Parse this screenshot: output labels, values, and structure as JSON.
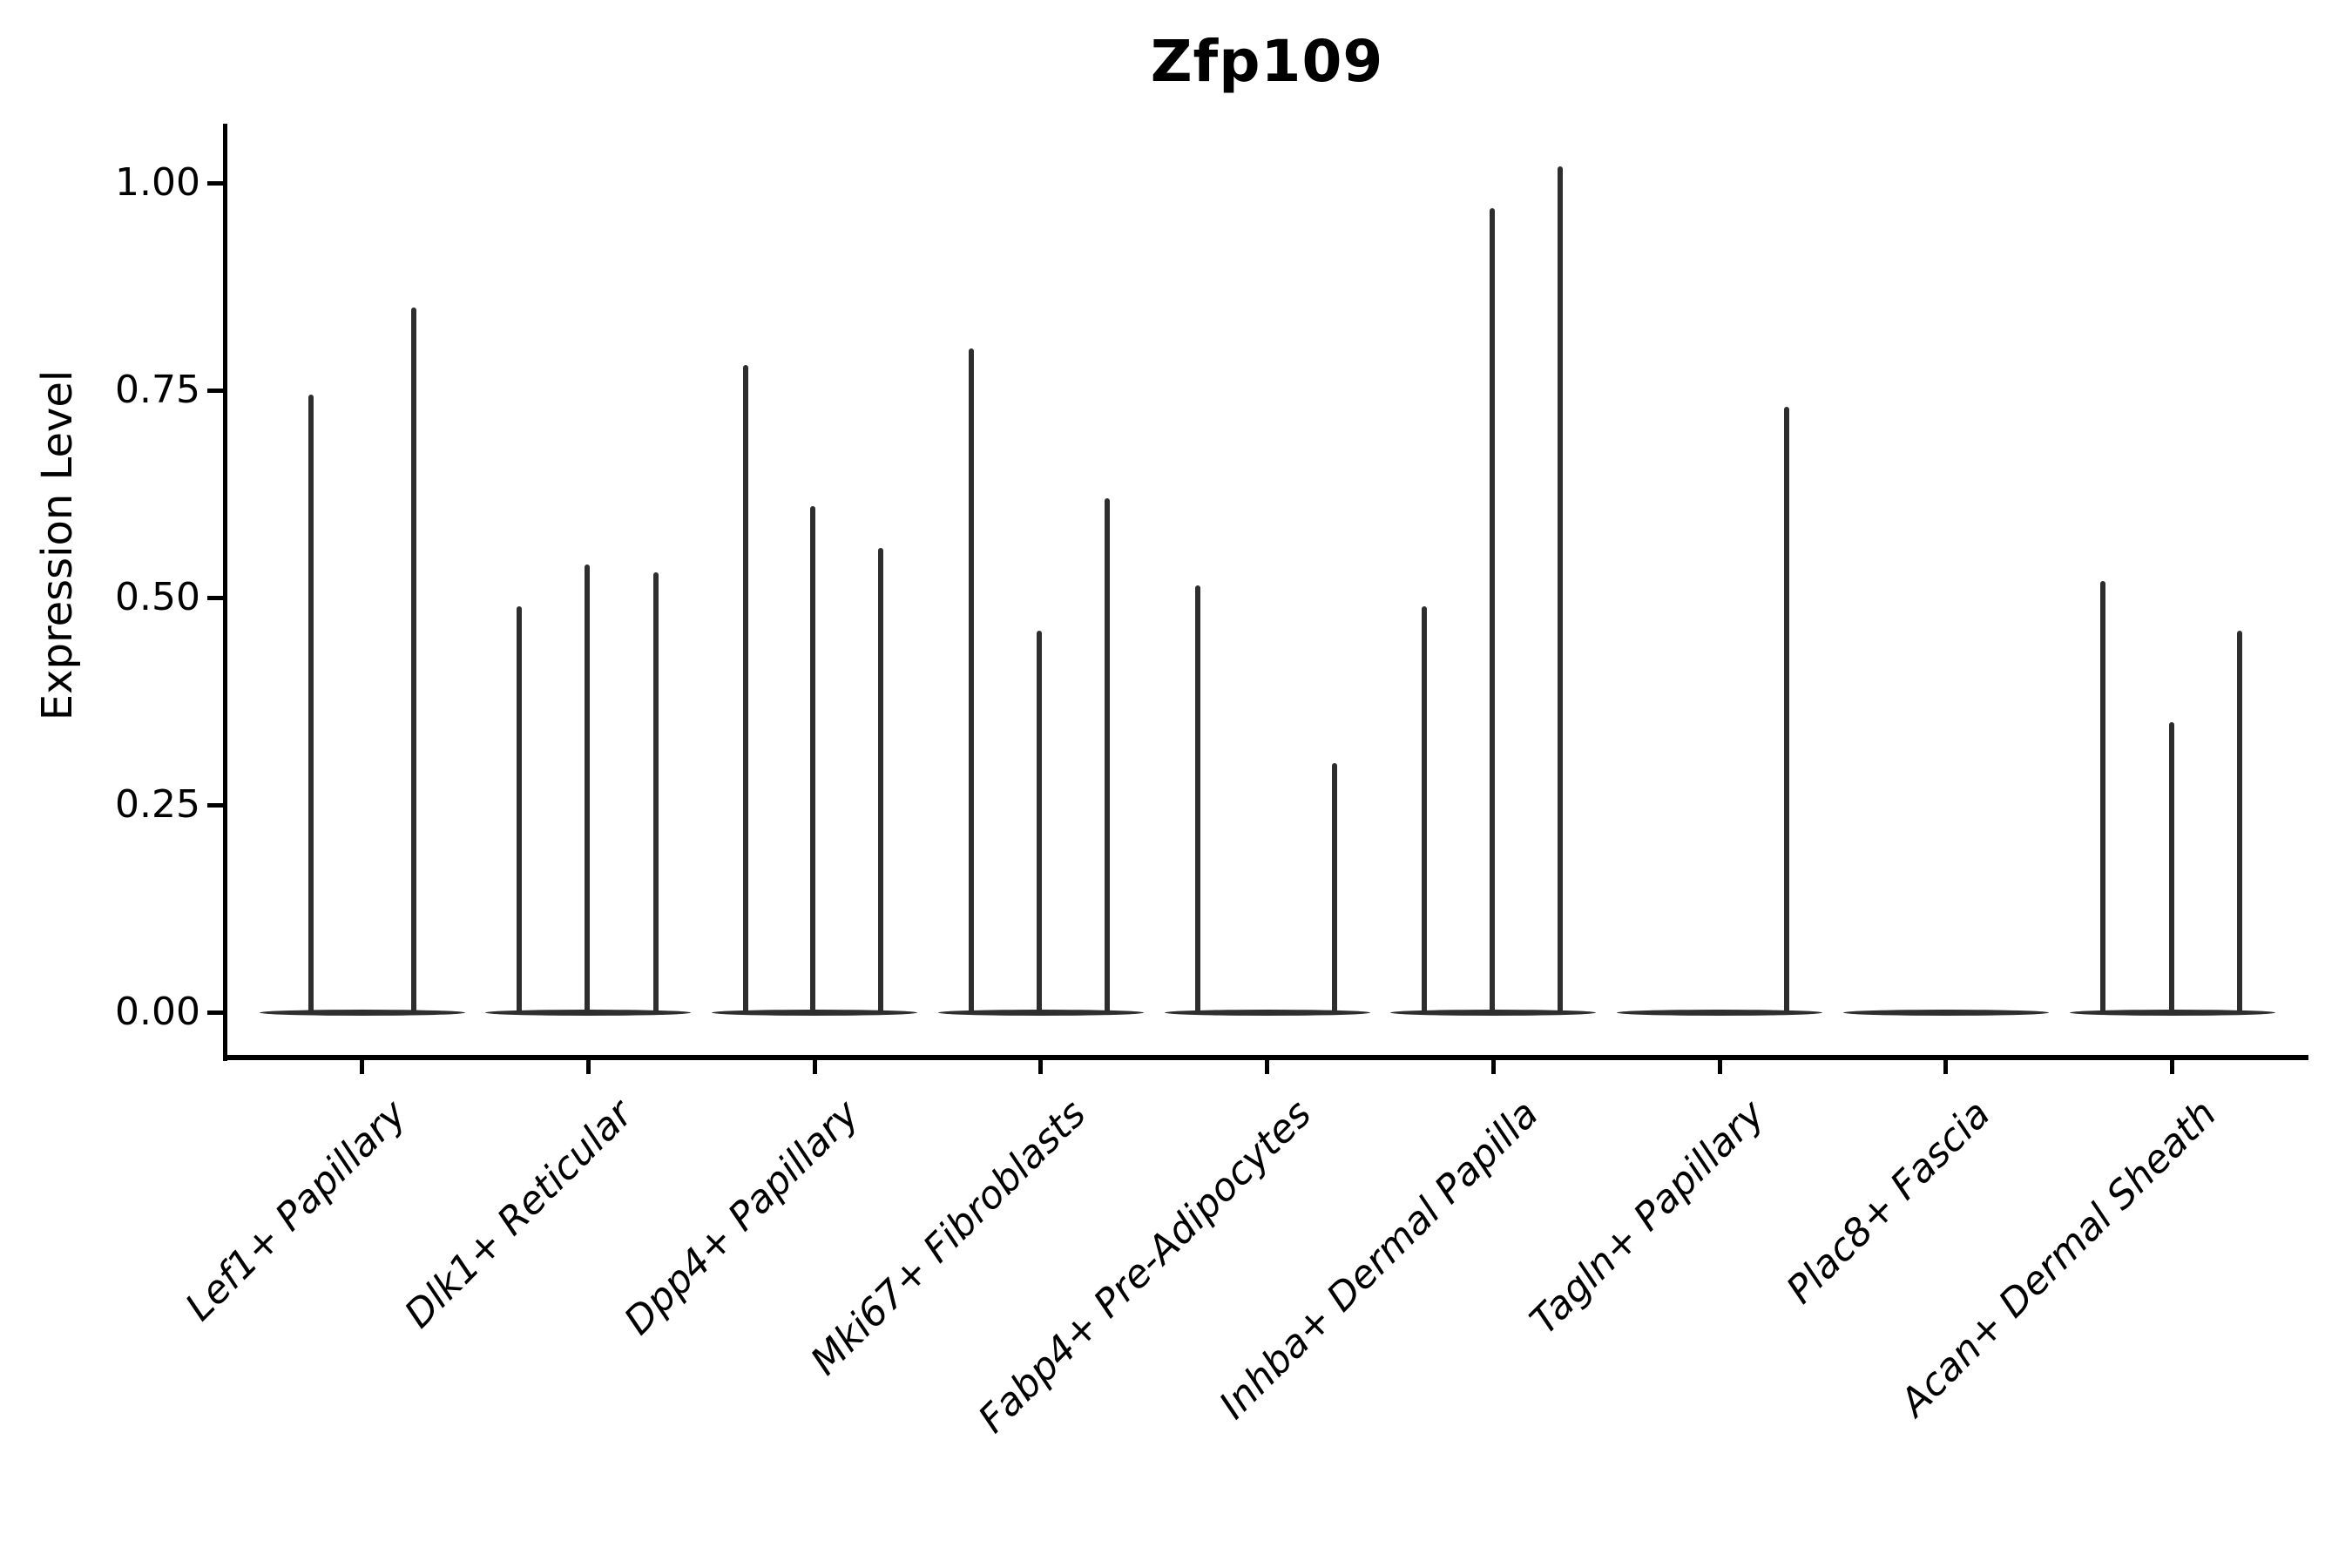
{
  "title": "Zfp109",
  "colors": {
    "background": "#ffffff",
    "ink": "#000000",
    "violin": "#2e2e2e"
  },
  "chart_data": {
    "type": "violin",
    "title": "Zfp109",
    "xlabel": "",
    "ylabel": "Expression Level",
    "ylim": [
      0,
      1.07
    ],
    "grid": false,
    "legend": "none",
    "x_tick_rotation": 45,
    "y_ticks": [
      {
        "value": 0.0,
        "label": "0.00"
      },
      {
        "value": 0.25,
        "label": "0.25"
      },
      {
        "value": 0.5,
        "label": "0.50"
      },
      {
        "value": 0.75,
        "label": "0.75"
      },
      {
        "value": 1.0,
        "label": "1.00"
      }
    ],
    "categories": [
      "Lef1+ Papillary",
      "Dlk1+ Reticular",
      "Dpp4+ Papillary",
      "Mki67+ Fibroblasts",
      "Fabp4+ Pre-Adipocytes",
      "Inhba+ Dermal Papilla",
      "Tagln+ Papillary",
      "Plac8+ Fascia",
      "Acan+ Dermal Sheath"
    ],
    "series": [
      {
        "name": "Lef1+ Papillary",
        "spikes": [
          {
            "offset": -59,
            "value": 0.745
          },
          {
            "offset": 59,
            "value": 0.85
          }
        ]
      },
      {
        "name": "Dlk1+ Reticular",
        "spikes": [
          {
            "offset": -79,
            "value": 0.49
          },
          {
            "offset": -1,
            "value": 0.54
          },
          {
            "offset": 78,
            "value": 0.53
          }
        ]
      },
      {
        "name": "Dpp4+ Papillary",
        "spikes": [
          {
            "offset": -79,
            "value": 0.78
          },
          {
            "offset": -2,
            "value": 0.61
          },
          {
            "offset": 76,
            "value": 0.56
          }
        ]
      },
      {
        "name": "Mki67+ Fibroblasts",
        "spikes": [
          {
            "offset": -80,
            "value": 0.8
          },
          {
            "offset": -2,
            "value": 0.46
          },
          {
            "offset": 76,
            "value": 0.62
          }
        ]
      },
      {
        "name": "Fabp4+ Pre-Adipocytes",
        "spikes": [
          {
            "offset": -80,
            "value": 0.515
          },
          {
            "offset": 77,
            "value": 0.3
          }
        ]
      },
      {
        "name": "Inhba+ Dermal Papilla",
        "spikes": [
          {
            "offset": -79,
            "value": 0.49
          },
          {
            "offset": -1,
            "value": 0.97
          },
          {
            "offset": 77,
            "value": 1.02
          }
        ]
      },
      {
        "name": "Tagln+ Papillary",
        "spikes": [
          {
            "offset": 77,
            "value": 0.73
          }
        ]
      },
      {
        "name": "Plac8+ Fascia",
        "spikes": []
      },
      {
        "name": "Acan+ Dermal Sheath",
        "spikes": [
          {
            "offset": -80,
            "value": 0.52
          },
          {
            "offset": -1,
            "value": 0.35
          },
          {
            "offset": 77,
            "value": 0.46
          }
        ]
      }
    ]
  }
}
